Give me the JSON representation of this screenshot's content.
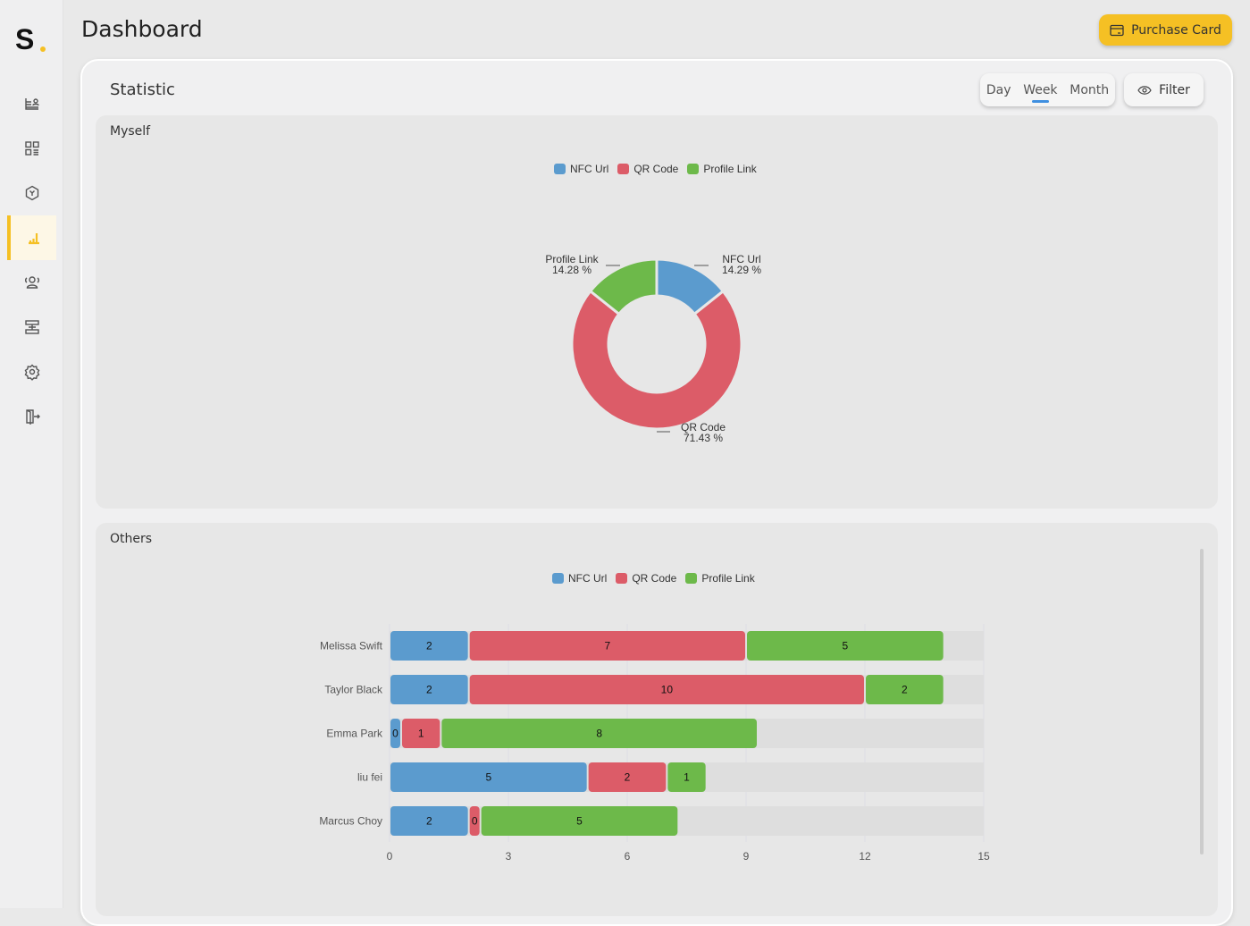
{
  "app": {
    "logo": "S",
    "title": "Dashboard",
    "purchase_label": "Purchase Card"
  },
  "sidebar": {
    "items": [
      {
        "icon": "contact-card-icon"
      },
      {
        "icon": "grid-icon"
      },
      {
        "icon": "hexagon-icon"
      },
      {
        "icon": "bar-chart-icon",
        "active": true
      },
      {
        "icon": "users-icon"
      },
      {
        "icon": "layers-icon"
      },
      {
        "icon": "gear-icon"
      },
      {
        "icon": "logout-icon"
      }
    ]
  },
  "statistic": {
    "title": "Statistic",
    "periods": [
      "Day",
      "Week",
      "Month"
    ],
    "selected_period": "Week",
    "filter_label": "Filter"
  },
  "colors": {
    "nfc": "#5b9bce",
    "qr": "#dc5c68",
    "profile": "#6db94a",
    "accent": "#f5c024"
  },
  "chart_data": [
    {
      "type": "pie",
      "title": "Myself",
      "donut": true,
      "legend": [
        "NFC Url",
        "QR Code",
        "Profile Link"
      ],
      "legend_position": "top",
      "slices": [
        {
          "name": "NFC Url",
          "percent": 14.29,
          "label": "14.29 %"
        },
        {
          "name": "QR Code",
          "percent": 71.43,
          "label": "71.43 %"
        },
        {
          "name": "Profile Link",
          "percent": 14.28,
          "label": "14.28 %"
        }
      ]
    },
    {
      "type": "bar",
      "orientation": "horizontal",
      "stacked": true,
      "title": "Others",
      "legend": [
        "NFC Url",
        "QR Code",
        "Profile Link"
      ],
      "legend_position": "top",
      "categories": [
        "Melissa Swift",
        "Taylor Black",
        "Emma Park",
        "liu fei",
        "Marcus Choy"
      ],
      "series": [
        {
          "name": "NFC Url",
          "values": [
            2,
            2,
            0,
            5,
            2
          ]
        },
        {
          "name": "QR Code",
          "values": [
            7,
            10,
            1,
            2,
            0
          ]
        },
        {
          "name": "Profile Link",
          "values": [
            5,
            2,
            8,
            1,
            5
          ]
        }
      ],
      "xlim": [
        0,
        15
      ],
      "xticks": [
        "0",
        "3",
        "6",
        "9",
        "12",
        "15"
      ],
      "grid": true
    }
  ]
}
